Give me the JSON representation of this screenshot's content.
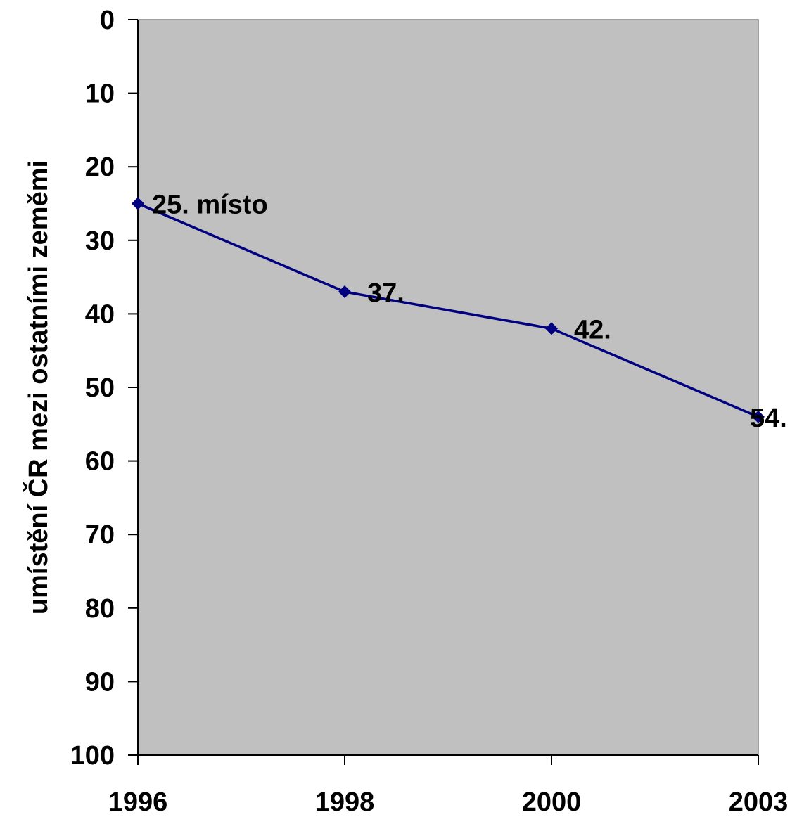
{
  "chart_data": {
    "type": "line",
    "title": "",
    "xlabel": "",
    "ylabel": "umístění ČR mezi ostatními zeměmi",
    "categories": [
      "1996",
      "1998",
      "2000",
      "2003"
    ],
    "series": [
      {
        "values": [
          25,
          37,
          42,
          54
        ],
        "labels": [
          "25. místo",
          "37.",
          "42.",
          "54."
        ],
        "color": "#000080"
      }
    ],
    "y_ticks": [
      "0",
      "10",
      "20",
      "30",
      "40",
      "50",
      "60",
      "70",
      "80",
      "90",
      "100"
    ],
    "ylim": [
      0,
      100
    ],
    "y_inverted": true,
    "grid": false,
    "legend": "none",
    "plot_background": "#c0c0c0",
    "marker": "diamond"
  }
}
